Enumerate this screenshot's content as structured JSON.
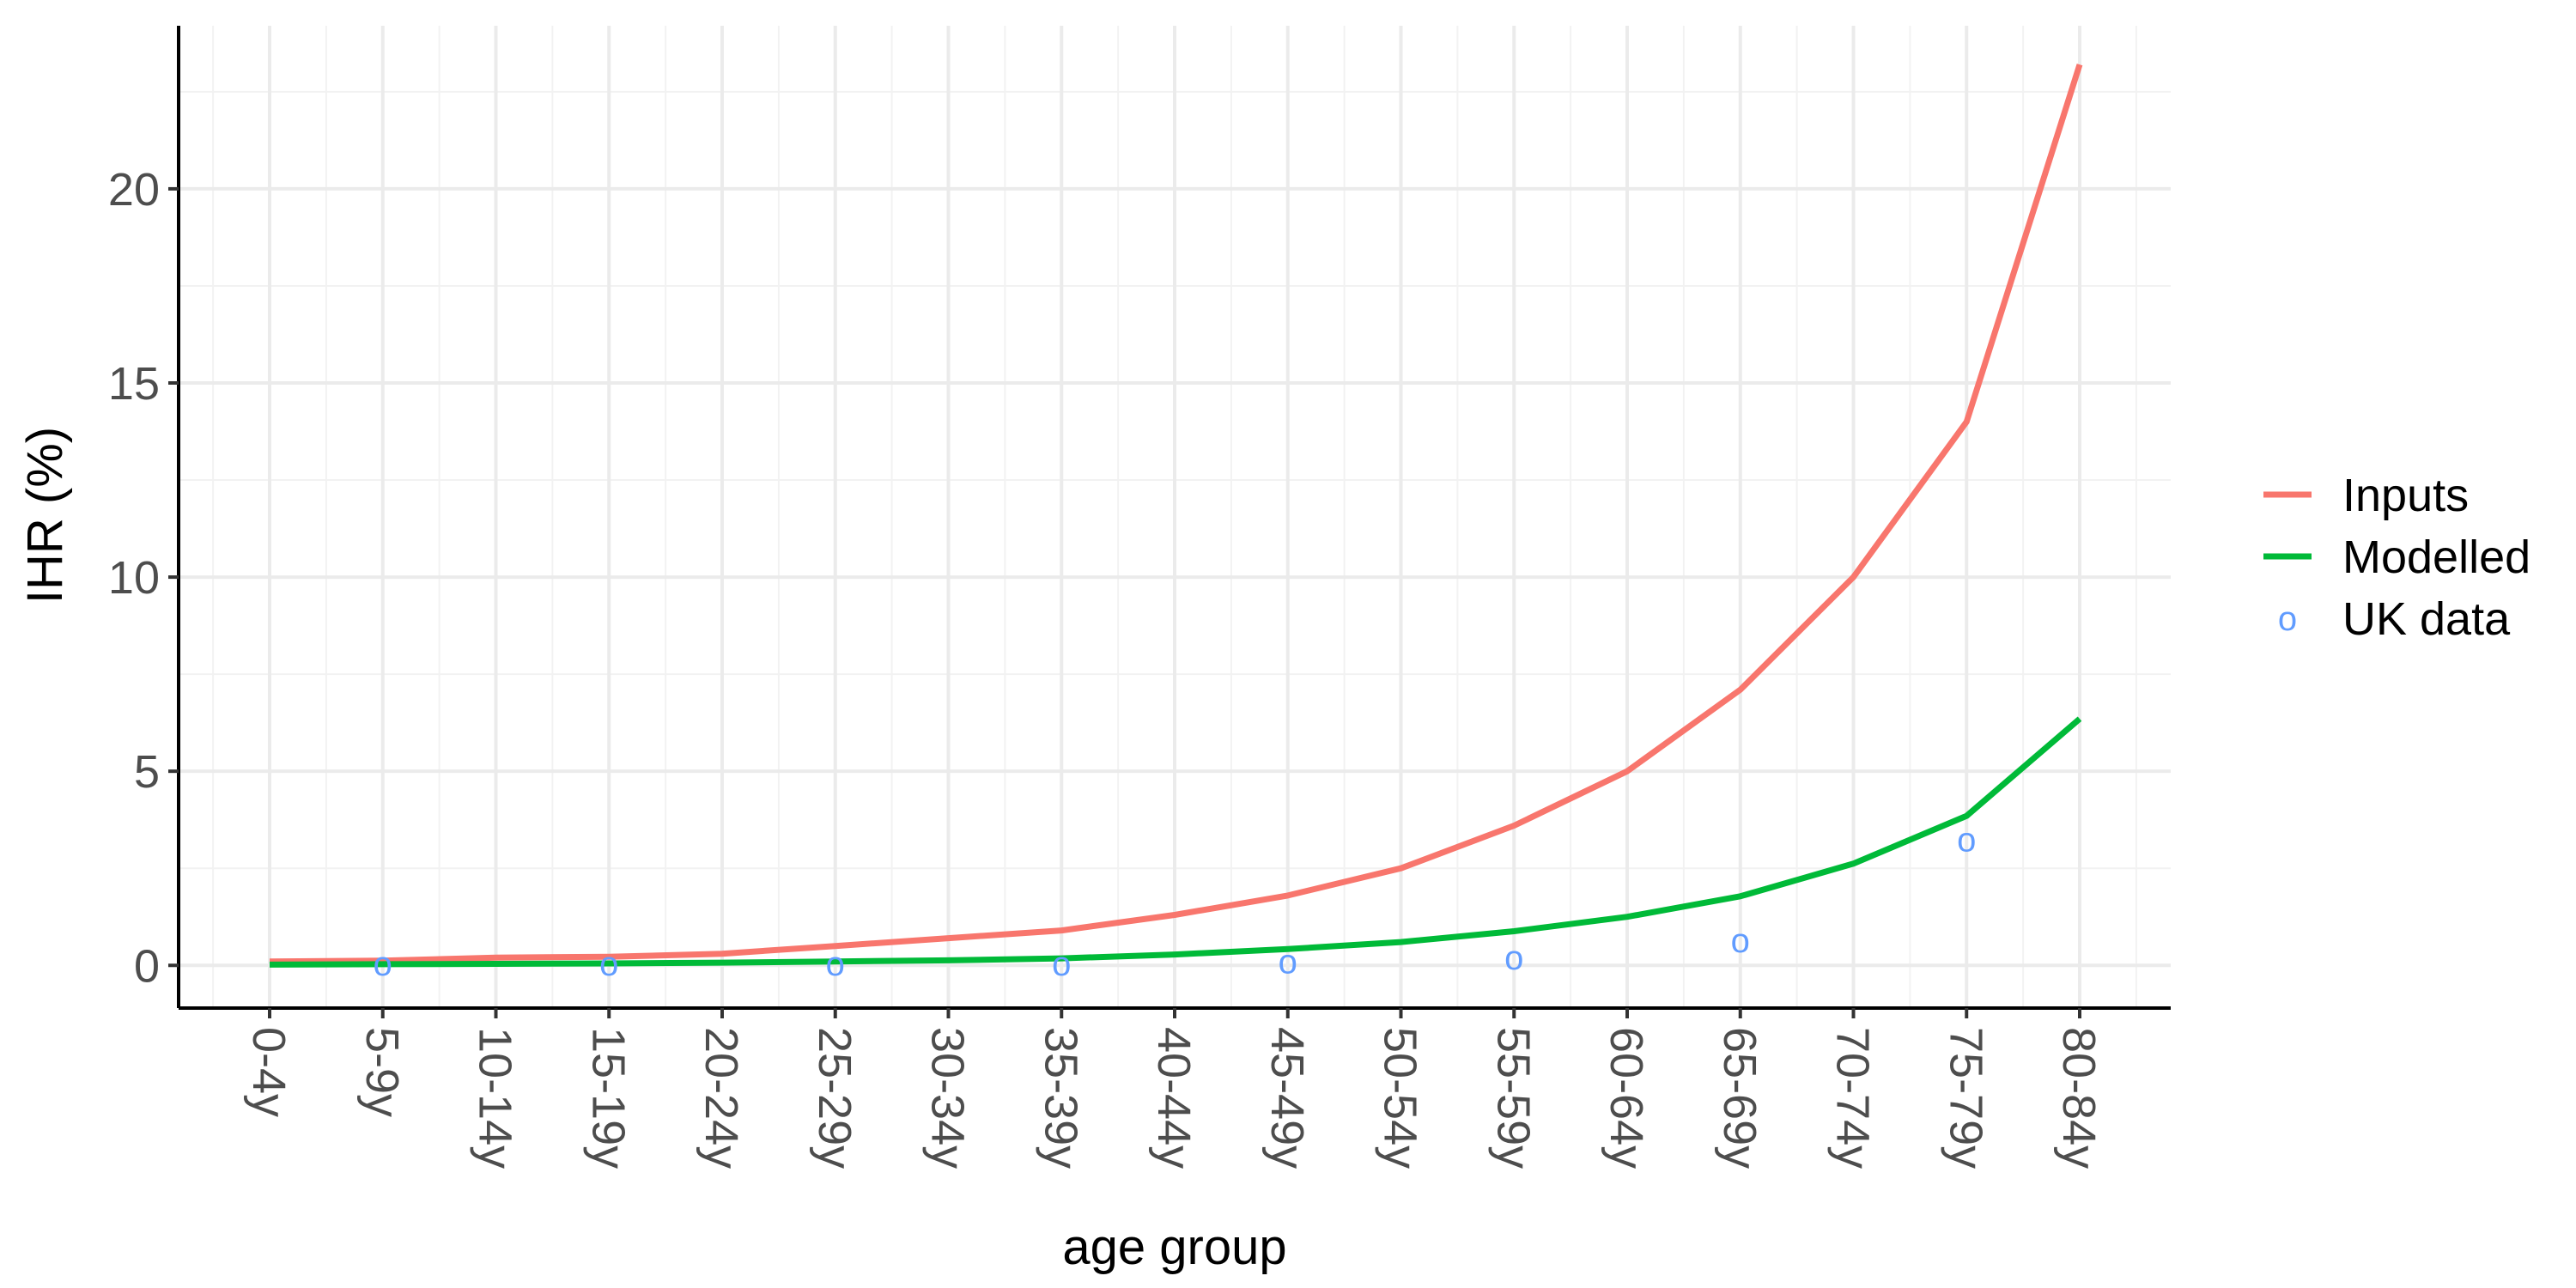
{
  "chart_data": {
    "type": "line",
    "xlabel": "age group",
    "ylabel": "IHR (%)",
    "ylim": [
      -1.1,
      24.2
    ],
    "y_ticks": [
      0,
      5,
      10,
      15,
      20
    ],
    "grid": "on",
    "legend_position": "right",
    "categories": [
      "0-4y",
      "5-9y",
      "10-14y",
      "15-19y",
      "20-24y",
      "25-29y",
      "30-34y",
      "35-39y",
      "40-44y",
      "45-49y",
      "50-54y",
      "55-59y",
      "60-64y",
      "65-69y",
      "70-74y",
      "75-79y",
      "80-84y"
    ],
    "series": [
      {
        "name": "Inputs",
        "kind": "line",
        "color": "#F8766D",
        "values": [
          0.1,
          0.12,
          0.2,
          0.22,
          0.3,
          0.5,
          0.7,
          0.9,
          1.3,
          1.8,
          2.5,
          3.6,
          5.0,
          7.1,
          10.0,
          14.0,
          23.2
        ]
      },
      {
        "name": "Modelled",
        "kind": "line",
        "color": "#00BA38",
        "values": [
          0.02,
          0.03,
          0.04,
          0.05,
          0.07,
          0.1,
          0.13,
          0.18,
          0.28,
          0.42,
          0.6,
          0.88,
          1.25,
          1.78,
          2.62,
          3.85,
          6.35
        ]
      },
      {
        "name": "UK data",
        "kind": "points",
        "marker": "o",
        "color": "#619CFF",
        "x": [
          "5-9y",
          "15-19y",
          "25-29y",
          "35-39y",
          "45-49y",
          "55-59y",
          "65-69y",
          "75-79y"
        ],
        "values": [
          0.05,
          0.05,
          0.05,
          0.05,
          0.1,
          0.2,
          0.65,
          3.25
        ]
      }
    ]
  }
}
